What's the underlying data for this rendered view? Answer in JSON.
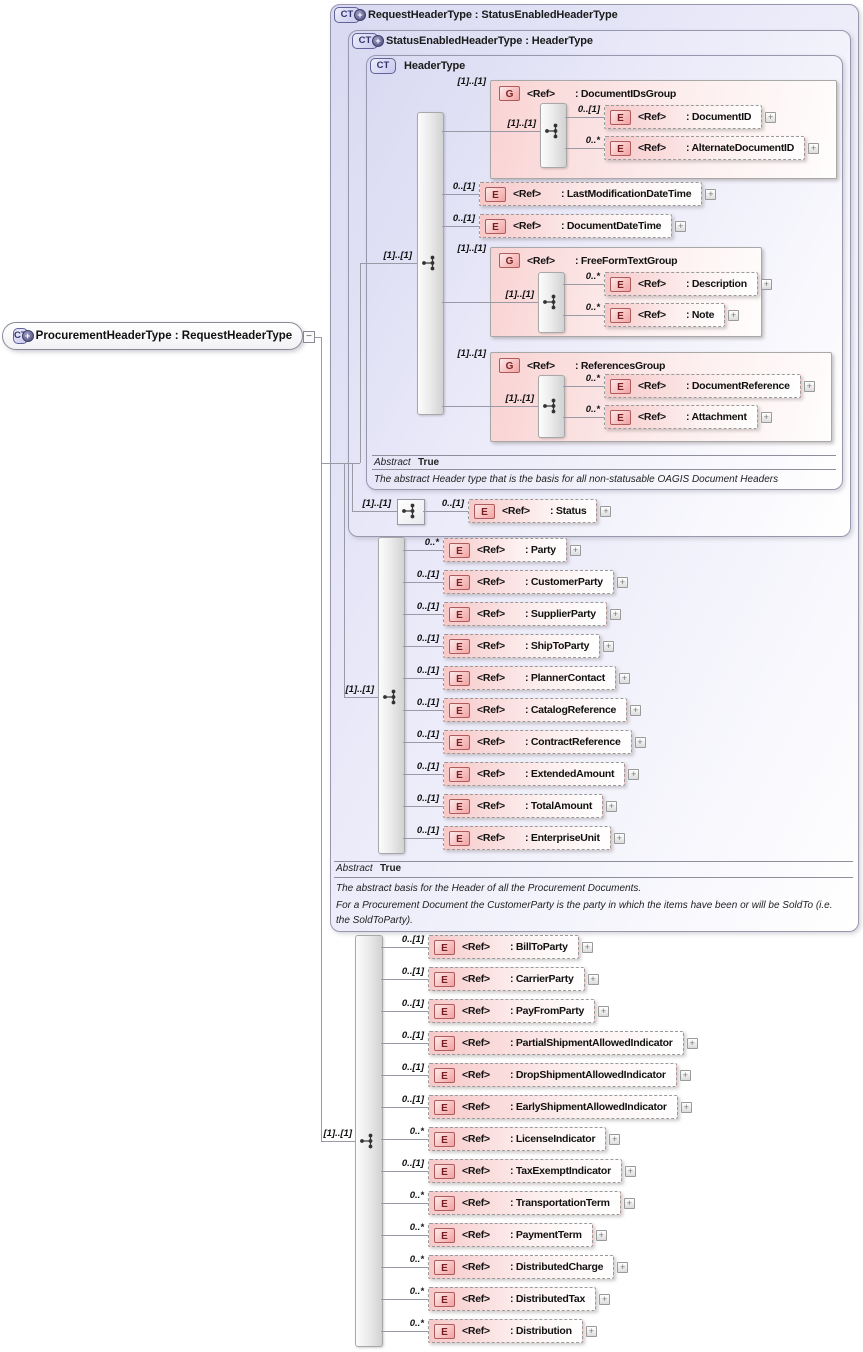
{
  "diagram": {
    "ct_label": "CT",
    "plus_badge": "+",
    "expand_glyph": "+",
    "root": {
      "label": "ProcurementHeaderType : RequestHeaderType",
      "collapse_glyph": "−"
    },
    "request": {
      "title": "RequestHeaderType : StatusEnabledHeaderType",
      "card": "[1]..[1]",
      "abstract_label": "Abstract",
      "abstract_value": "True",
      "doc1": "The abstract basis for the Header of all the Procurement Documents.",
      "doc2": "For a Procurement Document the CustomerParty is the party in which the items have been or will be SoldTo (i.e. the SoldToParty).",
      "children": [
        {
          "icon": "E",
          "card": "0..*",
          "ref": "<Ref>",
          "label": ": Party"
        },
        {
          "icon": "E",
          "card": "0..[1]",
          "ref": "<Ref>",
          "label": ": CustomerParty"
        },
        {
          "icon": "E",
          "card": "0..[1]",
          "ref": "<Ref>",
          "label": ": SupplierParty"
        },
        {
          "icon": "E",
          "card": "0..[1]",
          "ref": "<Ref>",
          "label": ": ShipToParty"
        },
        {
          "icon": "E",
          "card": "0..[1]",
          "ref": "<Ref>",
          "label": ": PlannerContact"
        },
        {
          "icon": "E",
          "card": "0..[1]",
          "ref": "<Ref>",
          "label": ": CatalogReference"
        },
        {
          "icon": "E",
          "card": "0..[1]",
          "ref": "<Ref>",
          "label": ": ContractReference"
        },
        {
          "icon": "E",
          "card": "0..[1]",
          "ref": "<Ref>",
          "label": ": ExtendedAmount"
        },
        {
          "icon": "E",
          "card": "0..[1]",
          "ref": "<Ref>",
          "label": ": TotalAmount"
        },
        {
          "icon": "E",
          "card": "0..[1]",
          "ref": "<Ref>",
          "label": ": EnterpriseUnit"
        }
      ]
    },
    "statusEnabled": {
      "title": "StatusEnabledHeaderType : HeaderType",
      "card": "[1]..[1]",
      "children": [
        {
          "icon": "E",
          "card": "0..[1]",
          "ref": "<Ref>",
          "label": ": Status"
        }
      ]
    },
    "headerType": {
      "title": "HeaderType",
      "card": "[1]..[1]",
      "abstract_label": "Abstract",
      "abstract_value": "True",
      "doc1": "The abstract Header type that is the basis for all non-statusable OAGIS Document Headers",
      "children": [
        {
          "kind": "group",
          "icon": "G",
          "card": "[1]..[1]",
          "ref": "<Ref>",
          "label": ": DocumentIDsGroup",
          "inner_card": "[1]..[1]",
          "children": [
            {
              "icon": "E",
              "card": "0..[1]",
              "ref": "<Ref>",
              "label": ": DocumentID"
            },
            {
              "icon": "E",
              "card": "0..*",
              "ref": "<Ref>",
              "label": ": AlternateDocumentID"
            }
          ]
        },
        {
          "kind": "element",
          "icon": "E",
          "card": "0..[1]",
          "ref": "<Ref>",
          "label": ": LastModificationDateTime"
        },
        {
          "kind": "element",
          "icon": "E",
          "card": "0..[1]",
          "ref": "<Ref>",
          "label": ": DocumentDateTime"
        },
        {
          "kind": "group",
          "icon": "G",
          "card": "[1]..[1]",
          "ref": "<Ref>",
          "label": ": FreeFormTextGroup",
          "inner_card": "[1]..[1]",
          "children": [
            {
              "icon": "E",
              "card": "0..*",
              "ref": "<Ref>",
              "label": ": Description"
            },
            {
              "icon": "E",
              "card": "0..*",
              "ref": "<Ref>",
              "label": ": Note"
            }
          ]
        },
        {
          "kind": "group",
          "icon": "G",
          "card": "[1]..[1]",
          "ref": "<Ref>",
          "label": ": ReferencesGroup",
          "inner_card": "[1]..[1]",
          "children": [
            {
              "icon": "E",
              "card": "0..*",
              "ref": "<Ref>",
              "label": ": DocumentReference"
            },
            {
              "icon": "E",
              "card": "0..*",
              "ref": "<Ref>",
              "label": ": Attachment"
            }
          ]
        }
      ]
    },
    "procurement": {
      "card": "[1]..[1]",
      "children": [
        {
          "icon": "E",
          "card": "0..[1]",
          "ref": "<Ref>",
          "label": ": BillToParty"
        },
        {
          "icon": "E",
          "card": "0..[1]",
          "ref": "<Ref>",
          "label": ": CarrierParty"
        },
        {
          "icon": "E",
          "card": "0..[1]",
          "ref": "<Ref>",
          "label": ": PayFromParty"
        },
        {
          "icon": "E",
          "card": "0..[1]",
          "ref": "<Ref>",
          "label": ": PartialShipmentAllowedIndicator"
        },
        {
          "icon": "E",
          "card": "0..[1]",
          "ref": "<Ref>",
          "label": ": DropShipmentAllowedIndicator"
        },
        {
          "icon": "E",
          "card": "0..[1]",
          "ref": "<Ref>",
          "label": ": EarlyShipmentAllowedIndicator"
        },
        {
          "icon": "E",
          "card": "0..*",
          "ref": "<Ref>",
          "label": ": LicenseIndicator"
        },
        {
          "icon": "E",
          "card": "0..[1]",
          "ref": "<Ref>",
          "label": ": TaxExemptIndicator"
        },
        {
          "icon": "E",
          "card": "0..*",
          "ref": "<Ref>",
          "label": ": TransportationTerm"
        },
        {
          "icon": "E",
          "card": "0..*",
          "ref": "<Ref>",
          "label": ": PaymentTerm"
        },
        {
          "icon": "E",
          "card": "0..*",
          "ref": "<Ref>",
          "label": ": DistributedCharge"
        },
        {
          "icon": "E",
          "card": "0..*",
          "ref": "<Ref>",
          "label": ": DistributedTax"
        },
        {
          "icon": "E",
          "card": "0..*",
          "ref": "<Ref>",
          "label": ": Distribution"
        }
      ]
    }
  }
}
